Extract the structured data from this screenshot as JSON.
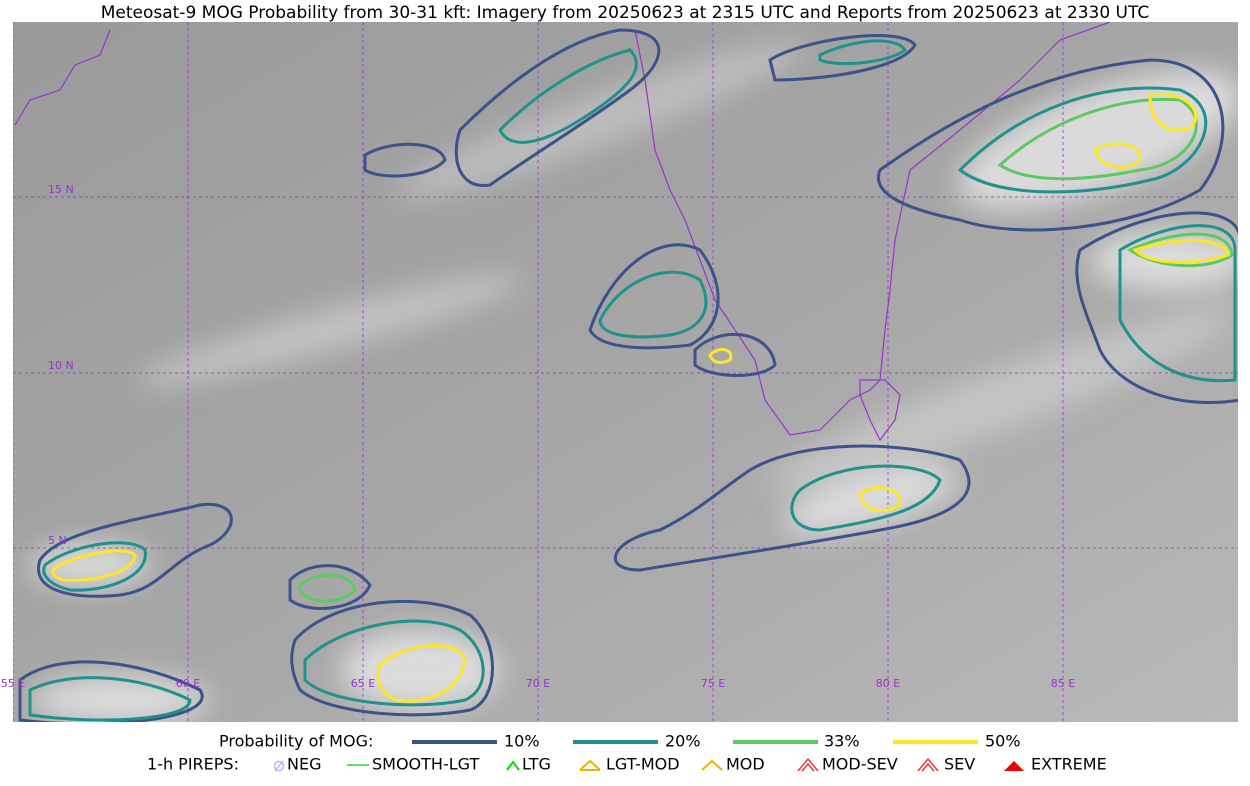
{
  "title": "Meteosat-9 MOG Probability from 30-31 kft: Imagery from 20250623 at 2315 UTC and Reports from 20250623 at 2330 UTC",
  "map": {
    "lat_labels": [
      "15 N",
      "10 N",
      "5 N"
    ],
    "lon_labels": [
      "55 E",
      "60 E",
      "65 E",
      "70 E",
      "75 E",
      "80 E",
      "85 E"
    ]
  },
  "legend": {
    "probability": {
      "label": "Probability of MOG:",
      "items": [
        "10%",
        "20%",
        "33%",
        "50%"
      ]
    },
    "pireps": {
      "label": "1-h PIREPS:",
      "items": [
        "NEG",
        "SMOOTH-LGT",
        "LTG",
        "LGT-MOD",
        "MOD",
        "MOD-SEV",
        "SEV",
        "EXTREME"
      ]
    }
  }
}
